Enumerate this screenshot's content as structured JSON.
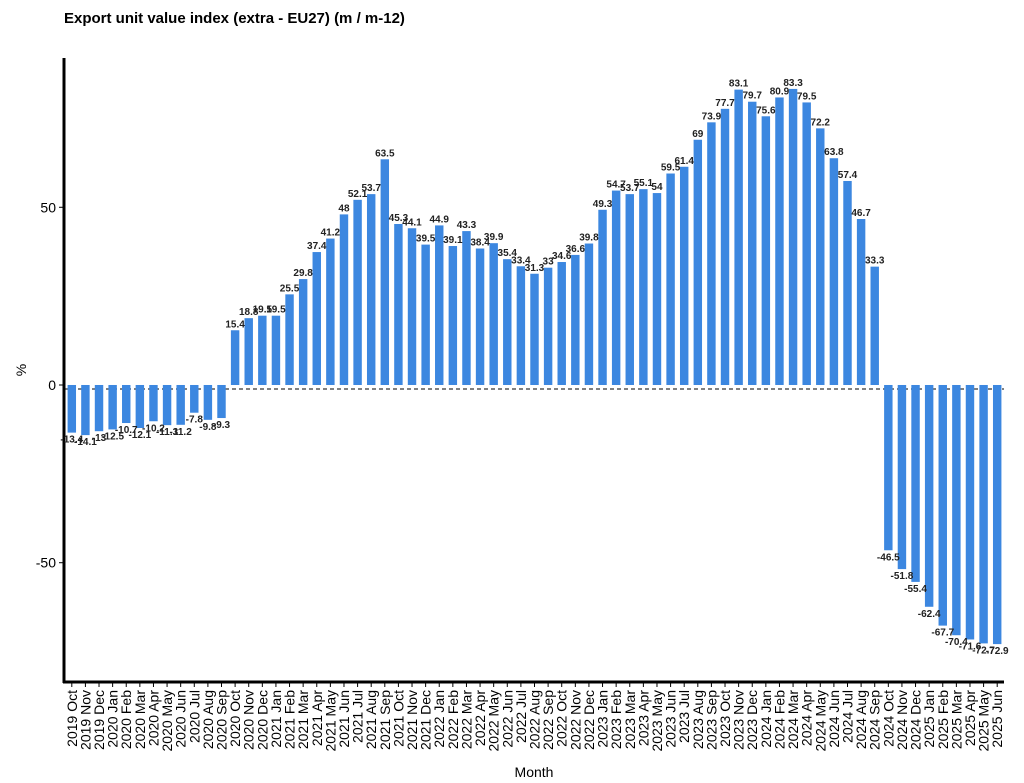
{
  "chart_data": {
    "type": "bar",
    "title": "Export unit value index (extra - EU27) (m / m-12)",
    "xlabel": "Month",
    "ylabel": "%",
    "bar_color": "#3c87e0",
    "ylim": [
      -83,
      92
    ],
    "yticks": [
      -50,
      0,
      50
    ],
    "grid": false,
    "categories": [
      "2019 Oct",
      "2019 Nov",
      "2019 Dec",
      "2020 Jan",
      "2020 Feb",
      "2020 Mar",
      "2020 Apr",
      "2020 May",
      "2020 Jun",
      "2020 Jul",
      "2020 Aug",
      "2020 Sep",
      "2020 Oct",
      "2020 Nov",
      "2020 Dec",
      "2021 Jan",
      "2021 Feb",
      "2021 Mar",
      "2021 Apr",
      "2021 May",
      "2021 Jun",
      "2021 Jul",
      "2021 Aug",
      "2021 Sep",
      "2021 Oct",
      "2021 Nov",
      "2021 Dec",
      "2022 Jan",
      "2022 Feb",
      "2022 Mar",
      "2022 Apr",
      "2022 May",
      "2022 Jun",
      "2022 Jul",
      "2022 Aug",
      "2022 Sep",
      "2022 Oct",
      "2022 Nov",
      "2022 Dec",
      "2023 Jan",
      "2023 Feb",
      "2023 Mar",
      "2023 Apr",
      "2023 May",
      "2023 Jun",
      "2023 Jul",
      "2023 Aug",
      "2023 Sep",
      "2023 Oct",
      "2023 Nov",
      "2023 Dec",
      "2024 Jan",
      "2024 Feb",
      "2024 Mar",
      "2024 Apr",
      "2024 May",
      "2024 Jun",
      "2024 Jul",
      "2024 Aug",
      "2024 Sep",
      "2024 Oct",
      "2024 Nov",
      "2024 Dec",
      "2025 Jan",
      "2025 Feb",
      "2025 Mar",
      "2025 Apr",
      "2025 May",
      "2025 Jun"
    ],
    "values": [
      -13.4,
      -14.1,
      -13,
      -12.5,
      -10.7,
      -12.1,
      -10.2,
      -11.3,
      -11.2,
      -7.8,
      -9.8,
      -9.3,
      15.4,
      18.8,
      19.5,
      19.5,
      25.5,
      29.8,
      37.4,
      41.2,
      48,
      52.1,
      53.7,
      63.5,
      45.3,
      44.1,
      39.5,
      44.9,
      39.1,
      43.3,
      38.4,
      39.9,
      35.4,
      33.4,
      31.3,
      33,
      34.6,
      36.6,
      39.8,
      49.3,
      54.7,
      53.7,
      55.1,
      54,
      59.5,
      61.4,
      69,
      73.9,
      77.7,
      83.1,
      79.7,
      75.6,
      80.9,
      83.3,
      79.5,
      72.2,
      63.8,
      57.4,
      46.7,
      33.3,
      -46.5,
      -51.8,
      -55.4,
      -62.4,
      -67.7,
      -70.4,
      -71.6,
      -72.7,
      -72.9
    ]
  }
}
